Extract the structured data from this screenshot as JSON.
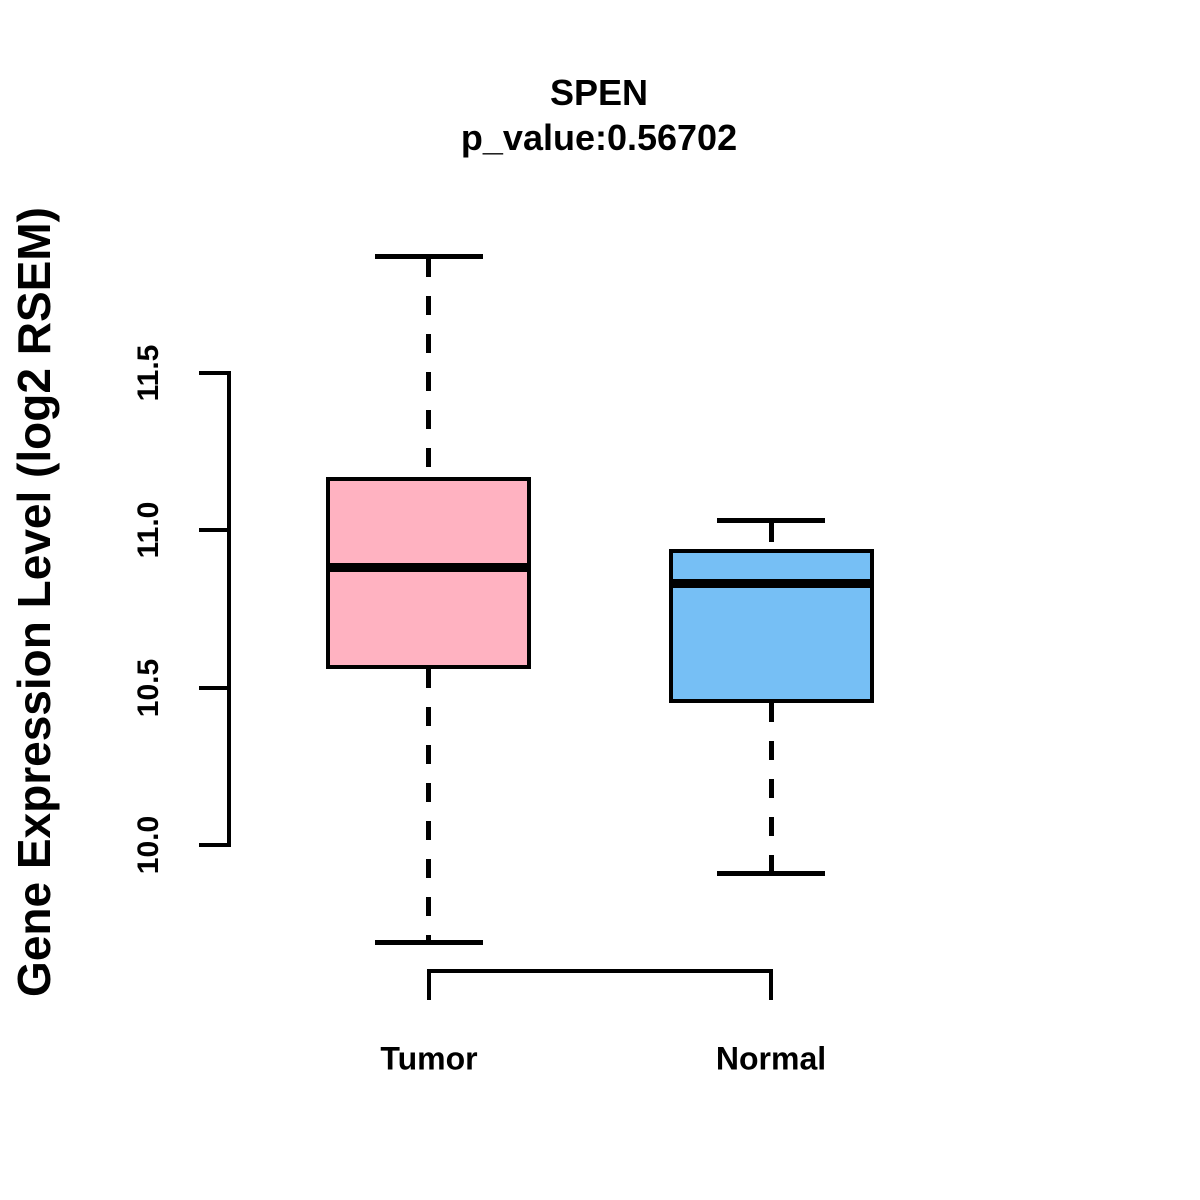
{
  "chart_data": {
    "type": "boxplot",
    "title": "SPEN",
    "subtitle": "p_value:0.56702",
    "ylabel": "Gene Expression Level (log2 RSEM)",
    "xlabel": "",
    "categories": [
      "Tumor",
      "Normal"
    ],
    "yticks": [
      10.0,
      10.5,
      11.0,
      11.5
    ],
    "ytick_labels": [
      "10.0",
      "10.5",
      "11.0",
      "11.5"
    ],
    "ylim": [
      9.6,
      11.95
    ],
    "grid": false,
    "legend": "none",
    "series": [
      {
        "name": "Tumor",
        "color": "#FFB2C1",
        "lower_whisker": 9.69,
        "q1": 10.56,
        "median": 10.88,
        "q3": 11.17,
        "upper_whisker": 11.87
      },
      {
        "name": "Normal",
        "color": "#76BFF5",
        "lower_whisker": 9.91,
        "q1": 10.45,
        "median": 10.83,
        "q3": 10.94,
        "upper_whisker": 11.03
      }
    ],
    "border_color": "#000000",
    "text_color": "#000000",
    "background": "#FFFFFF"
  }
}
